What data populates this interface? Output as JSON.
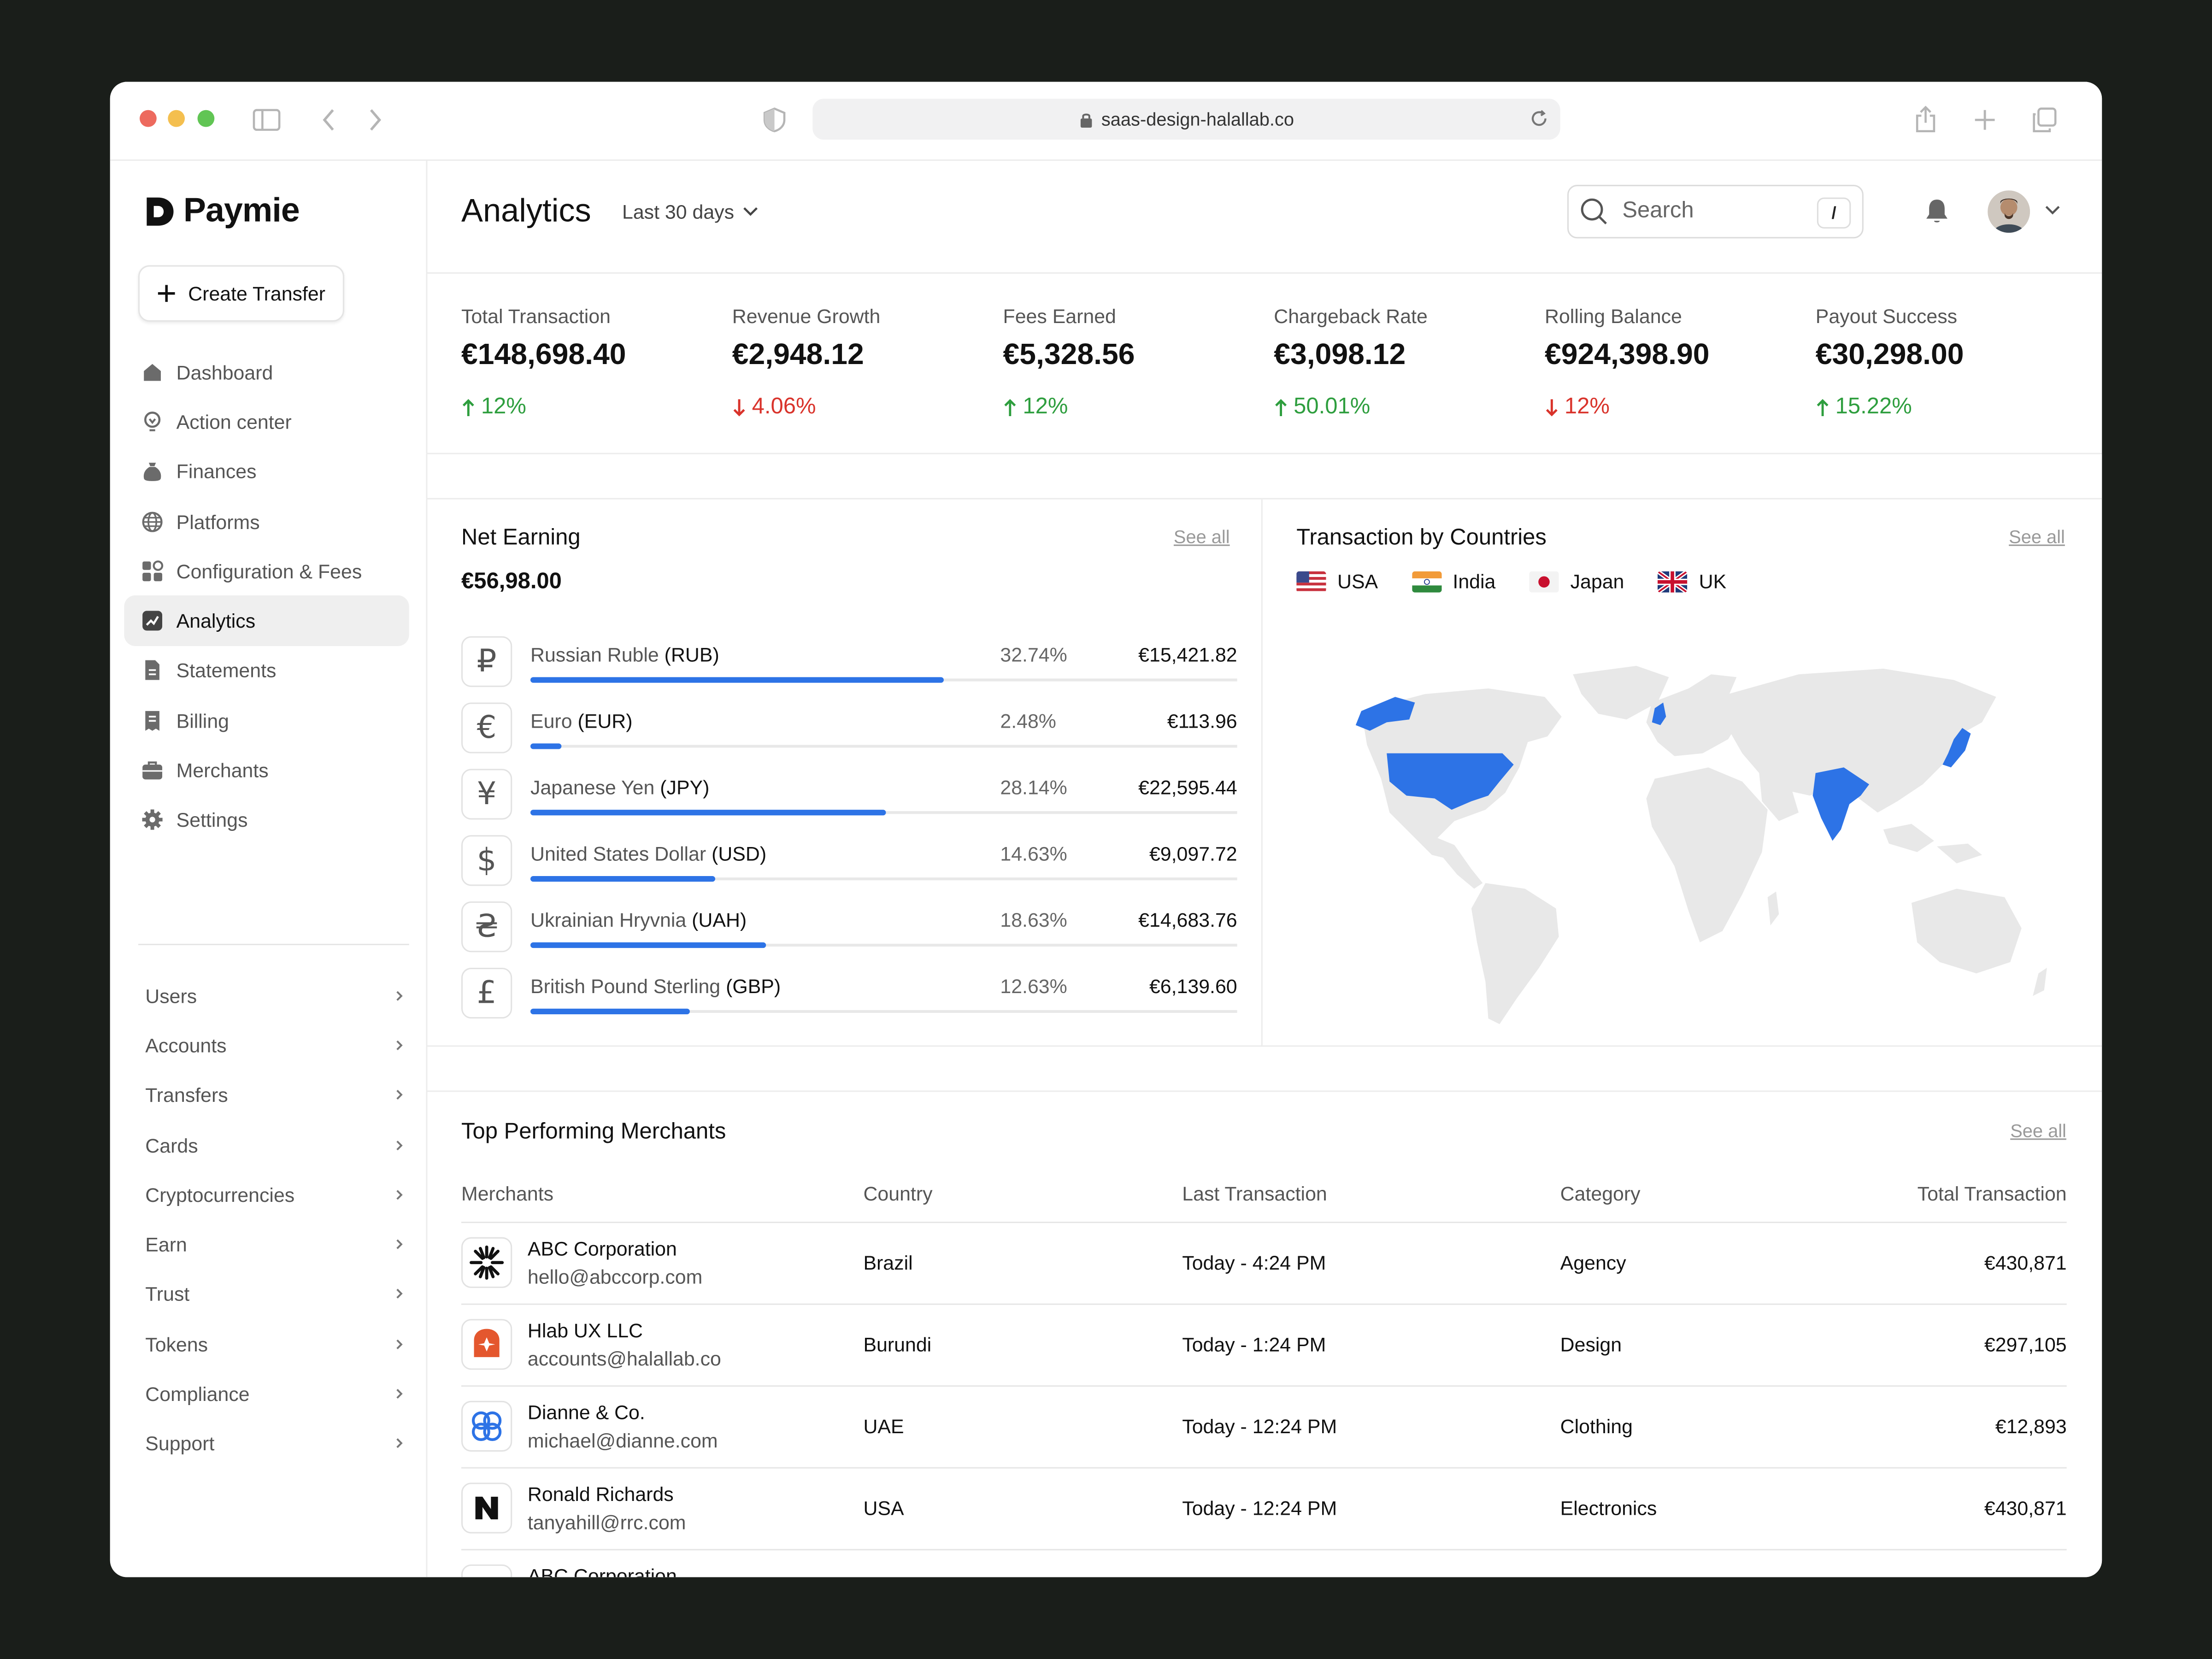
{
  "browser": {
    "url": "saas-design-halallab.co",
    "traffic_light_colors": [
      "#ed6a5e",
      "#f4bf4f",
      "#61c554"
    ]
  },
  "app": {
    "brand": "Paymie",
    "create_button": "Create Transfer"
  },
  "sidebar": {
    "items": [
      {
        "label": "Dashboard",
        "icon": "home-icon"
      },
      {
        "label": "Action center",
        "icon": "lightbulb-icon"
      },
      {
        "label": "Finances",
        "icon": "money-bag-icon"
      },
      {
        "label": "Platforms",
        "icon": "globe-icon"
      },
      {
        "label": "Configuration & Fees",
        "icon": "grid-icon"
      },
      {
        "label": "Analytics",
        "icon": "chart-icon",
        "active": true
      },
      {
        "label": "Statements",
        "icon": "document-icon"
      },
      {
        "label": "Billing",
        "icon": "receipt-icon"
      },
      {
        "label": "Merchants",
        "icon": "briefcase-icon"
      },
      {
        "label": "Settings",
        "icon": "gear-icon"
      }
    ],
    "groups": [
      "Users",
      "Accounts",
      "Transfers",
      "Cards",
      "Cryptocurrencies",
      "Earn",
      "Trust",
      "Tokens",
      "Compliance",
      "Support"
    ]
  },
  "header": {
    "title": "Analytics",
    "range": "Last 30 days",
    "search_placeholder": "Search",
    "search_shortcut": "/"
  },
  "stats": [
    {
      "label": "Total Transaction",
      "value": "€148,698.40",
      "change": "12%",
      "direction": "up"
    },
    {
      "label": "Revenue Growth",
      "value": "€2,948.12",
      "change": "4.06%",
      "direction": "down"
    },
    {
      "label": "Fees Earned",
      "value": "€5,328.56",
      "change": "12%",
      "direction": "up"
    },
    {
      "label": "Chargeback Rate",
      "value": "€3,098.12",
      "change": "50.01%",
      "direction": "up"
    },
    {
      "label": "Rolling Balance",
      "value": "€924,398.90",
      "change": "12%",
      "direction": "down"
    },
    {
      "label": "Payout Success",
      "value": "€30,298.00",
      "change": "15.22%",
      "direction": "up"
    }
  ],
  "net_earning": {
    "title": "Net Earning",
    "see_all": "See all",
    "value": "€56,98.00",
    "accent": "#2d73e6",
    "currencies": [
      {
        "symbol": "₽",
        "name": "Russian Ruble",
        "code": "(RUB)",
        "percent": "32.74%",
        "amount": "€15,421.82",
        "share": 0.3274
      },
      {
        "symbol": "€",
        "name": "Euro",
        "code": "(EUR)",
        "percent": "2.48%",
        "amount": "€113.96",
        "share": 0.0248
      },
      {
        "symbol": "¥",
        "name": "Japanese Yen",
        "code": "(JPY)",
        "percent": "28.14%",
        "amount": "€22,595.44",
        "share": 0.2814
      },
      {
        "symbol": "$",
        "name": "United States Dollar",
        "code": "(USD)",
        "percent": "14.63%",
        "amount": "€9,097.72",
        "share": 0.1463
      },
      {
        "symbol": "₴",
        "name": "Ukrainian Hryvnia",
        "code": "(UAH)",
        "percent": "18.63%",
        "amount": "€14,683.76",
        "share": 0.1863
      },
      {
        "symbol": "£",
        "name": "British Pound Sterling",
        "code": "(GBP)",
        "percent": "12.63%",
        "amount": "€6,139.60",
        "share": 0.1263
      }
    ]
  },
  "countries": {
    "title": "Transaction by Countries",
    "see_all": "See all",
    "legend": [
      "USA",
      "India",
      "Japan",
      "UK"
    ],
    "highlight_color": "#2d73e6",
    "land_color": "#e8e8e8"
  },
  "merchants": {
    "title": "Top Performing Merchants",
    "see_all": "See all",
    "columns": [
      "Merchants",
      "Country",
      "Last Transaction",
      "Category",
      "Total Transaction"
    ],
    "rows": [
      {
        "name": "ABC Corporation",
        "email": "hello@abccorp.com",
        "country": "Brazil",
        "last": "Today - 4:24 PM",
        "category": "Agency",
        "total": "€430,871",
        "logo": "starburst-logo-icon"
      },
      {
        "name": "Hlab UX LLC",
        "email": "accounts@halallab.co",
        "country": "Burundi",
        "last": "Today - 1:24 PM",
        "category": "Design",
        "total": "€297,105",
        "logo": "hlab-logo-icon"
      },
      {
        "name": "Dianne & Co.",
        "email": "michael@dianne.com",
        "country": "UAE",
        "last": "Today - 12:24 PM",
        "category": "Clothing",
        "total": "€12,893",
        "logo": "knot-logo-icon"
      },
      {
        "name": "Ronald Richards",
        "email": "tanyahill@rrc.com",
        "country": "USA",
        "last": "Today - 12:24 PM",
        "category": "Electronics",
        "total": "€430,871",
        "logo": "n-logo-icon"
      },
      {
        "name": "ABC Corporation",
        "email": "",
        "country": "",
        "last": "",
        "category": "",
        "total": "",
        "logo": "starburst-logo-icon"
      }
    ]
  }
}
